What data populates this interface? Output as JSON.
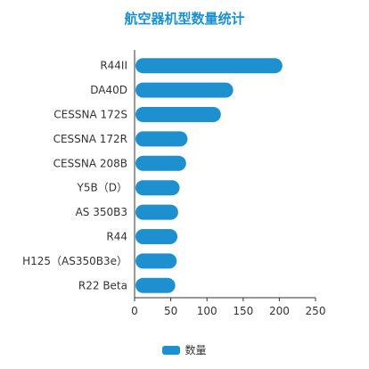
{
  "chart_data": {
    "type": "bar",
    "orientation": "horizontal",
    "title": "航空器机型数量统计",
    "categories": [
      "R44II",
      "DA40D",
      "CESSNA 172S",
      "CESSNA 172R",
      "CESSNA 208B",
      "Y5B（D）",
      "AS 350B3",
      "R44",
      "H125（AS350B3e）",
      "R22 Beta"
    ],
    "series": [
      {
        "name": "数量",
        "values": [
          203,
          135,
          118,
          72,
          70,
          61,
          59,
          58,
          57,
          55
        ]
      }
    ],
    "xlim": [
      0,
      250
    ],
    "xticks": [
      0,
      50,
      100,
      150,
      200,
      250
    ],
    "xlabel": "",
    "ylabel": "",
    "grid": false,
    "legend_position": "bottom",
    "colors": {
      "bar": "#1e90d0",
      "axis": "#333333",
      "title": "#1a8fd4"
    }
  }
}
